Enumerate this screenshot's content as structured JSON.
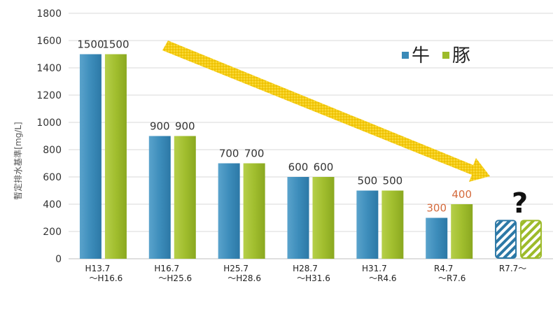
{
  "chart_data": {
    "type": "bar",
    "ylabel": "暫定排水基準[mg/L]",
    "ylim": [
      0,
      1800
    ],
    "yticks": [
      0,
      200,
      400,
      600,
      800,
      1000,
      1200,
      1400,
      1600,
      1800
    ],
    "grid": true,
    "legend_position": "top-right",
    "categories": [
      [
        "H13.7",
        "～H16.6"
      ],
      [
        "H16.7",
        "～H25.6"
      ],
      [
        "H25.7",
        "～H28.6"
      ],
      [
        "H28.7",
        "～H31.6"
      ],
      [
        "H31.7",
        "～R4.6"
      ],
      [
        "R4.7",
        "～R7.6"
      ],
      [
        "R7.7～",
        ""
      ]
    ],
    "series": [
      {
        "name": "牛",
        "color": "#3a8ab8",
        "values": [
          1500,
          900,
          700,
          600,
          500,
          300,
          null
        ],
        "label_colors": [
          "#333333",
          "#333333",
          "#333333",
          "#333333",
          "#333333",
          "#d46a3c",
          null
        ]
      },
      {
        "name": "豚",
        "color": "#9dbb2a",
        "values": [
          1500,
          900,
          700,
          600,
          500,
          400,
          null
        ],
        "label_colors": [
          "#333333",
          "#333333",
          "#333333",
          "#333333",
          "#333333",
          "#d46a3c",
          null
        ]
      }
    ],
    "unknown": {
      "category_index": 6,
      "placeholder_value": 280,
      "mark": "?"
    },
    "annotations": [
      {
        "type": "trend-arrow",
        "color": "#f2c400",
        "direction": "down-right"
      }
    ]
  }
}
